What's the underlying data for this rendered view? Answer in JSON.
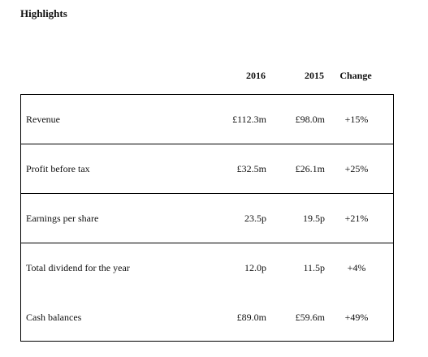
{
  "title": "Highlights",
  "columns": [
    "2016",
    "2015",
    "Change"
  ],
  "rows": [
    {
      "label": "Revenue",
      "y2016": "£112.3m",
      "y2015": "£98.0m",
      "change": "+15%"
    },
    {
      "label": "Profit before tax",
      "y2016": "£32.5m",
      "y2015": "£26.1m",
      "change": "+25%"
    },
    {
      "label": "Earnings per share",
      "y2016": "23.5p",
      "y2015": "19.5p",
      "change": "+21%"
    },
    {
      "label": "Total dividend for the year",
      "y2016": "12.0p",
      "y2015": "11.5p",
      "change": "+4%"
    },
    {
      "label": "Cash balances",
      "y2016": "£89.0m",
      "y2015": "£59.6m",
      "change": "+49%"
    }
  ]
}
